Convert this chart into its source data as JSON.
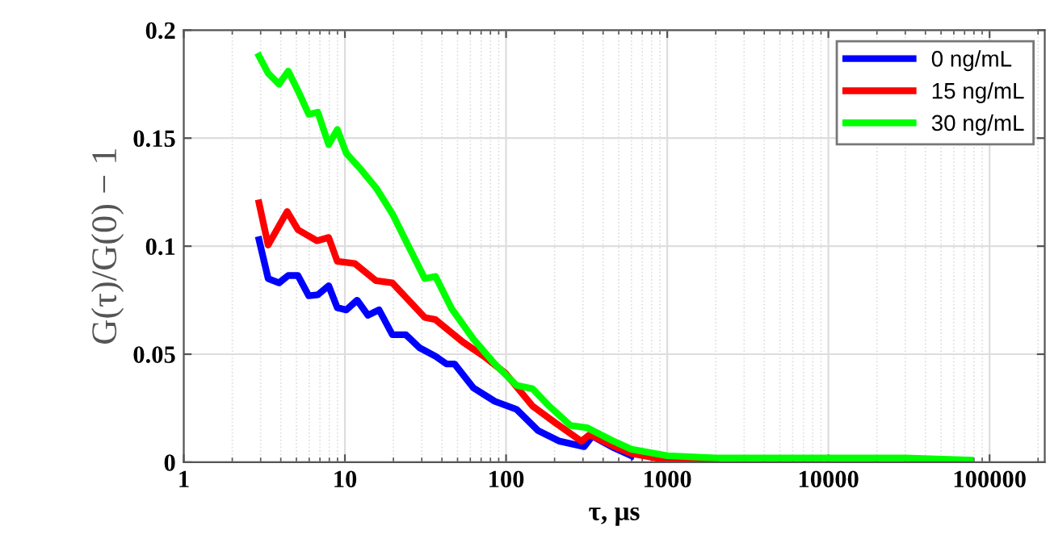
{
  "chart_data": {
    "type": "line",
    "xlabel": "τ, μs",
    "ylabel": "G(τ)/G(0) − 1",
    "log": "x",
    "xlim": [
      1,
      220000
    ],
    "xticks": [
      1,
      10,
      100,
      1000,
      10000,
      100000
    ],
    "ylim": [
      0,
      0.2
    ],
    "yticks": [
      0,
      0.05,
      0.1,
      0.15,
      0.2
    ],
    "grid": true,
    "legend": "top right",
    "line_style": "solid",
    "series": [
      {
        "name": "0 ng/mL",
        "color": "#0000ff",
        "x": [
          2.93,
          3.34,
          3.9,
          4.45,
          5.11,
          5.97,
          6.79,
          7.93,
          8.97,
          10.2,
          11.9,
          13.9,
          16.3,
          19.7,
          23.9,
          29,
          36.5,
          42.7,
          47.9,
          62.7,
          85,
          116,
          158,
          215,
          305,
          343,
          466,
          600
        ],
        "values": [
          0.103,
          0.085,
          0.083,
          0.0864,
          0.0864,
          0.077,
          0.0775,
          0.0817,
          0.0715,
          0.0705,
          0.075,
          0.068,
          0.0705,
          0.059,
          0.059,
          0.053,
          0.049,
          0.0455,
          0.0455,
          0.0344,
          0.0282,
          0.0245,
          0.0146,
          0.0097,
          0.0072,
          0.0121,
          0.0067,
          0.003
        ]
      },
      {
        "name": "15 ng/mL",
        "color": "#ff0000",
        "x": [
          2.93,
          3.34,
          4.38,
          5.11,
          6.7,
          7.93,
          8.97,
          11.5,
          15.6,
          19.7,
          31.3,
          36.5,
          53.8,
          73,
          99.6,
          146,
          199,
          293,
          330,
          466,
          600,
          1000,
          2000
        ],
        "values": [
          0.12,
          0.1005,
          0.116,
          0.1076,
          0.1025,
          0.104,
          0.093,
          0.092,
          0.084,
          0.083,
          0.067,
          0.066,
          0.0557,
          0.049,
          0.041,
          0.026,
          0.0186,
          0.0097,
          0.0128,
          0.0074,
          0.004,
          0.001,
          0.001
        ]
      },
      {
        "name": "30 ng/mL",
        "color": "#00ff00",
        "x": [
          2.93,
          3.34,
          3.9,
          4.45,
          5.11,
          5.97,
          6.79,
          7.93,
          8.97,
          10.2,
          12.4,
          15.6,
          19.7,
          24.8,
          31.3,
          36.5,
          46,
          62.7,
          85,
          116,
          146,
          185,
          251,
          317,
          466,
          600,
          1000,
          2000,
          5000,
          10000,
          30000,
          76000
        ],
        "values": [
          0.188,
          0.18,
          0.175,
          0.181,
          0.172,
          0.161,
          0.162,
          0.147,
          0.154,
          0.143,
          0.136,
          0.127,
          0.115,
          0.1,
          0.085,
          0.086,
          0.071,
          0.057,
          0.0455,
          0.0356,
          0.034,
          0.026,
          0.017,
          0.016,
          0.0097,
          0.006,
          0.003,
          0.002,
          0.002,
          0.002,
          0.002,
          0.001
        ]
      }
    ]
  }
}
